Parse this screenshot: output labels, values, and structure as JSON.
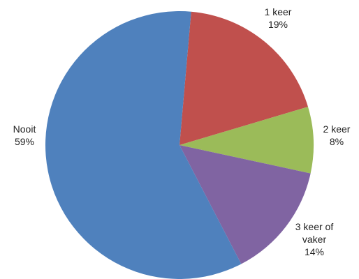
{
  "chart_data": {
    "type": "pie",
    "title": "",
    "legend": "none",
    "start_angle_deg": 5,
    "direction": "clockwise",
    "slices": [
      {
        "name": "1 keer",
        "value": 19,
        "label_lines": [
          "1 keer",
          "19%"
        ],
        "color": "#C0504D"
      },
      {
        "name": "2 keer",
        "value": 8,
        "label_lines": [
          "2 keer",
          "8%"
        ],
        "color": "#9BBB59"
      },
      {
        "name": "3 keer of vaker",
        "value": 14,
        "label_lines": [
          "3 keer of",
          "vaker",
          "14%"
        ],
        "color": "#8064A2"
      },
      {
        "name": "Nooit",
        "value": 59,
        "label_lines": [
          "Nooit",
          "59%"
        ],
        "color": "#4F81BD"
      }
    ]
  }
}
